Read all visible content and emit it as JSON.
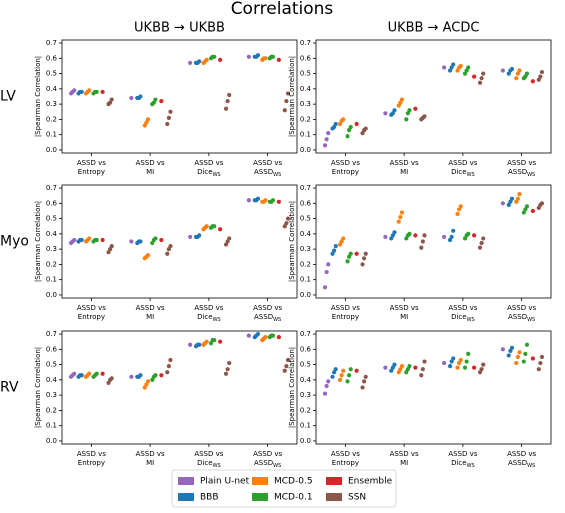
{
  "chart_data": {
    "type": "strip",
    "title": "Correlations",
    "columns": [
      "UKBB → UKBB",
      "UKBB → ACDC"
    ],
    "rows": [
      "LV",
      "Myo",
      "RV"
    ],
    "ylabel": "|Spearman Correlation|",
    "categories": [
      {
        "line1": "ASSD vs",
        "line2": "Entropy"
      },
      {
        "line1": "ASSD vs",
        "line2": "MI"
      },
      {
        "line1": "ASSD vs",
        "line2": "Dice",
        "sub": "WS"
      },
      {
        "line1": "ASSD vs",
        "line2": "ASSD",
        "sub": "WS"
      }
    ],
    "ylim": [
      -0.02,
      0.72
    ],
    "yticks": [
      {
        "value": 0,
        "label": "0.0"
      },
      0.1,
      0.2,
      0.3,
      0.4,
      0.5,
      0.6,
      0.7
    ],
    "series": [
      {
        "name": "Plain U-net",
        "color": "#9467bd"
      },
      {
        "name": "BBB",
        "color": "#1f77b4"
      },
      {
        "name": "MCD-0.5",
        "color": "#ff7f0e"
      },
      {
        "name": "MCD-0.1",
        "color": "#2ca02c"
      },
      {
        "name": "Ensemble",
        "color": "#d62728"
      },
      {
        "name": "SSN",
        "color": "#8c564b"
      }
    ],
    "panels": [
      {
        "values": [
          [
            [
              0.37,
              0.38,
              0.39
            ],
            [
              0.34
            ],
            [
              0.57
            ],
            [
              0.61
            ]
          ],
          [
            [
              0.37,
              0.38,
              0.38
            ],
            [
              0.34,
              0.34,
              0.35
            ],
            [
              0.57,
              0.57,
              0.58
            ],
            [
              0.61,
              0.61,
              0.62
            ]
          ],
          [
            [
              0.37,
              0.38,
              0.39
            ],
            [
              0.16,
              0.18,
              0.2
            ],
            [
              0.57,
              0.58,
              0.59
            ],
            [
              0.59,
              0.6,
              0.6
            ]
          ],
          [
            [
              0.37,
              0.38,
              0.38
            ],
            [
              0.3,
              0.31,
              0.33
            ],
            [
              0.6,
              0.61,
              0.61
            ],
            [
              0.6,
              0.61,
              0.61
            ]
          ],
          [
            [
              0.38
            ],
            [
              0.32
            ],
            [
              0.59
            ],
            [
              0.59
            ]
          ],
          [
            [
              0.3,
              0.31,
              0.33
            ],
            [
              0.17,
              0.21,
              0.25
            ],
            [
              0.27,
              0.32,
              0.36
            ],
            [
              0.26,
              0.32,
              0.37
            ]
          ]
        ]
      },
      {
        "values": [
          [
            [
              0.03,
              0.07,
              0.11
            ],
            [
              0.24
            ],
            [
              0.54
            ],
            [
              0.52
            ]
          ],
          [
            [
              0.14,
              0.15,
              0.17
            ],
            [
              0.23,
              0.24,
              0.26
            ],
            [
              0.52,
              0.54,
              0.56
            ],
            [
              0.5,
              0.52,
              0.53
            ]
          ],
          [
            [
              0.17,
              0.19,
              0.2
            ],
            [
              0.29,
              0.31,
              0.33
            ],
            [
              0.52,
              0.54,
              0.55
            ],
            [
              0.47,
              0.5,
              0.52
            ]
          ],
          [
            [
              0.09,
              0.13,
              0.15
            ],
            [
              0.2,
              0.24,
              0.26
            ],
            [
              0.5,
              0.52,
              0.54
            ],
            [
              0.47,
              0.48,
              0.5
            ]
          ],
          [
            [
              0.17
            ],
            [
              0.27
            ],
            [
              0.48
            ],
            [
              0.45
            ]
          ],
          [
            [
              0.11,
              0.13,
              0.14
            ],
            [
              0.2,
              0.21,
              0.22
            ],
            [
              0.44,
              0.47,
              0.5
            ],
            [
              0.46,
              0.48,
              0.51
            ]
          ]
        ]
      },
      {
        "values": [
          [
            [
              0.34,
              0.35,
              0.36
            ],
            [
              0.35
            ],
            [
              0.38
            ],
            [
              0.62
            ]
          ],
          [
            [
              0.35,
              0.36,
              0.36
            ],
            [
              0.34,
              0.35,
              0.35
            ],
            [
              0.38,
              0.38,
              0.39
            ],
            [
              0.62,
              0.62,
              0.63
            ]
          ],
          [
            [
              0.35,
              0.36,
              0.37
            ],
            [
              0.24,
              0.25,
              0.26
            ],
            [
              0.43,
              0.44,
              0.45
            ],
            [
              0.61,
              0.61,
              0.62
            ]
          ],
          [
            [
              0.35,
              0.36,
              0.36
            ],
            [
              0.34,
              0.36,
              0.37
            ],
            [
              0.44,
              0.45,
              0.45
            ],
            [
              0.61,
              0.61,
              0.62
            ]
          ],
          [
            [
              0.36
            ],
            [
              0.36
            ],
            [
              0.43
            ],
            [
              0.61
            ]
          ],
          [
            [
              0.28,
              0.3,
              0.32
            ],
            [
              0.27,
              0.3,
              0.32
            ],
            [
              0.33,
              0.35,
              0.37
            ],
            [
              0.45,
              0.47,
              0.5
            ]
          ]
        ]
      },
      {
        "values": [
          [
            [
              0.05,
              0.15,
              0.2
            ],
            [
              0.38
            ],
            [
              0.38
            ],
            [
              0.6
            ]
          ],
          [
            [
              0.27,
              0.29,
              0.32
            ],
            [
              0.37,
              0.39,
              0.41
            ],
            [
              0.36,
              0.38,
              0.42
            ],
            [
              0.59,
              0.61,
              0.63
            ]
          ],
          [
            [
              0.33,
              0.35,
              0.37
            ],
            [
              0.48,
              0.51,
              0.54
            ],
            [
              0.53,
              0.56,
              0.58
            ],
            [
              0.61,
              0.63,
              0.66
            ]
          ],
          [
            [
              0.22,
              0.25,
              0.27
            ],
            [
              0.37,
              0.39,
              0.4
            ],
            [
              0.37,
              0.39,
              0.4
            ],
            [
              0.54,
              0.56,
              0.58
            ]
          ],
          [
            [
              0.27
            ],
            [
              0.39
            ],
            [
              0.39
            ],
            [
              0.55
            ]
          ],
          [
            [
              0.2,
              0.24,
              0.27
            ],
            [
              0.31,
              0.35,
              0.39
            ],
            [
              0.31,
              0.34,
              0.37
            ],
            [
              0.57,
              0.59,
              0.6
            ]
          ]
        ]
      },
      {
        "values": [
          [
            [
              0.42,
              0.43,
              0.44
            ],
            [
              0.42
            ],
            [
              0.63
            ],
            [
              0.69
            ]
          ],
          [
            [
              0.42,
              0.43,
              0.43
            ],
            [
              0.42,
              0.42,
              0.43
            ],
            [
              0.62,
              0.63,
              0.63
            ],
            [
              0.68,
              0.69,
              0.7
            ]
          ],
          [
            [
              0.42,
              0.43,
              0.44
            ],
            [
              0.35,
              0.37,
              0.39
            ],
            [
              0.63,
              0.64,
              0.65
            ],
            [
              0.66,
              0.67,
              0.68
            ]
          ],
          [
            [
              0.42,
              0.43,
              0.44
            ],
            [
              0.4,
              0.42,
              0.43
            ],
            [
              0.64,
              0.66,
              0.66
            ],
            [
              0.68,
              0.69,
              0.69
            ]
          ],
          [
            [
              0.44
            ],
            [
              0.43
            ],
            [
              0.65
            ],
            [
              0.68
            ]
          ],
          [
            [
              0.38,
              0.4,
              0.41
            ],
            [
              0.45,
              0.49,
              0.53
            ],
            [
              0.44,
              0.47,
              0.51
            ],
            [
              0.46,
              0.49,
              0.53
            ]
          ]
        ]
      },
      {
        "values": [
          [
            [
              0.31,
              0.36,
              0.39
            ],
            [
              0.48
            ],
            [
              0.51
            ],
            [
              0.6
            ]
          ],
          [
            [
              0.42,
              0.45,
              0.47
            ],
            [
              0.46,
              0.48,
              0.5
            ],
            [
              0.49,
              0.52,
              0.54
            ],
            [
              0.56,
              0.59,
              0.61
            ]
          ],
          [
            [
              0.4,
              0.43,
              0.46
            ],
            [
              0.45,
              0.47,
              0.49
            ],
            [
              0.48,
              0.51,
              0.53
            ],
            [
              0.51,
              0.55,
              0.58
            ]
          ],
          [
            [
              0.39,
              0.43,
              0.47
            ],
            [
              0.45,
              0.47,
              0.49
            ],
            [
              0.48,
              0.52,
              0.57
            ],
            [
              0.52,
              0.57,
              0.63
            ]
          ],
          [
            [
              0.46
            ],
            [
              0.48
            ],
            [
              0.48
            ],
            [
              0.54
            ]
          ],
          [
            [
              0.35,
              0.39,
              0.42
            ],
            [
              0.43,
              0.47,
              0.52
            ],
            [
              0.45,
              0.47,
              0.5
            ],
            [
              0.47,
              0.51,
              0.55
            ]
          ]
        ]
      }
    ]
  }
}
